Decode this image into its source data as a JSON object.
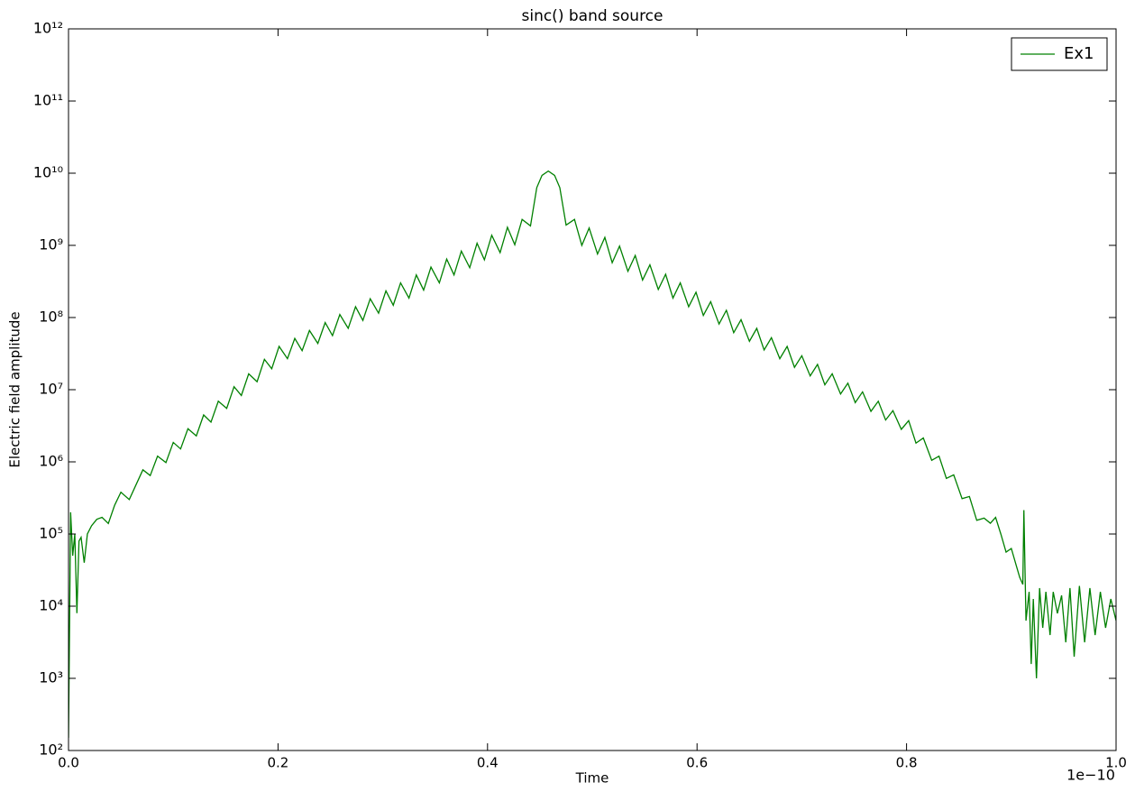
{
  "chart_data": {
    "type": "line",
    "title": "sinc() band source",
    "x_label": "Time",
    "y_label": "Electric field amplitude",
    "x_offset_label": "1e−10",
    "log_y": true,
    "legend": "upper right",
    "xlim": [
      0,
      1
    ],
    "xticks": [
      {
        "value": 0,
        "label": "0.0"
      },
      0.2,
      0.4,
      0.6,
      0.8,
      {
        "value": 1,
        "label": "1.0"
      }
    ],
    "ylim": [
      100,
      1000000000000
    ],
    "yticks": [
      {
        "value": 100,
        "label": "10²"
      },
      {
        "value": 1000,
        "label": "10³"
      },
      {
        "value": 10000,
        "label": "10⁴"
      },
      {
        "value": 100000,
        "label": "10⁵"
      },
      {
        "value": 1000000,
        "label": "10⁶"
      },
      {
        "value": 10000000,
        "label": "10⁷"
      },
      {
        "value": 100000000,
        "label": "10⁸"
      },
      {
        "value": 1000000000,
        "label": "10⁹"
      },
      {
        "value": 10000000000,
        "label": "10¹⁰"
      },
      {
        "value": 100000000000,
        "label": "10¹¹"
      },
      {
        "value": 1000000000000,
        "label": "10¹²"
      }
    ],
    "x": [
      0.0,
      0.002,
      0.004,
      0.006,
      0.008,
      0.01,
      0.012,
      0.015,
      0.018,
      0.022,
      0.027,
      0.032,
      0.038,
      0.044,
      0.05,
      0.058,
      0.071,
      0.078,
      0.085,
      0.093,
      0.1,
      0.107,
      0.114,
      0.122,
      0.129,
      0.136,
      0.143,
      0.151,
      0.158,
      0.165,
      0.172,
      0.18,
      0.187,
      0.194,
      0.201,
      0.209,
      0.216,
      0.223,
      0.23,
      0.238,
      0.245,
      0.252,
      0.259,
      0.267,
      0.274,
      0.281,
      0.288,
      0.296,
      0.303,
      0.31,
      0.317,
      0.325,
      0.332,
      0.339,
      0.346,
      0.354,
      0.361,
      0.368,
      0.375,
      0.383,
      0.39,
      0.397,
      0.404,
      0.412,
      0.419,
      0.426,
      0.433,
      0.441,
      0.447,
      0.452,
      0.458,
      0.464,
      0.469,
      0.475,
      0.483,
      0.49,
      0.497,
      0.505,
      0.512,
      0.519,
      0.526,
      0.534,
      0.541,
      0.548,
      0.555,
      0.563,
      0.57,
      0.577,
      0.584,
      0.592,
      0.599,
      0.606,
      0.613,
      0.621,
      0.628,
      0.635,
      0.642,
      0.65,
      0.657,
      0.664,
      0.671,
      0.679,
      0.686,
      0.693,
      0.7,
      0.708,
      0.715,
      0.722,
      0.729,
      0.737,
      0.744,
      0.751,
      0.758,
      0.766,
      0.773,
      0.78,
      0.787,
      0.795,
      0.802,
      0.809,
      0.816,
      0.824,
      0.831,
      0.838,
      0.845,
      0.853,
      0.86,
      0.867,
      0.874,
      0.88,
      0.885,
      0.89,
      0.895,
      0.9,
      0.904,
      0.908,
      0.911,
      0.912,
      0.914,
      0.917,
      0.919,
      0.921,
      0.924,
      0.927,
      0.93,
      0.933,
      0.937,
      0.94,
      0.944,
      0.948,
      0.952,
      0.956,
      0.96,
      0.965,
      0.97,
      0.975,
      0.98,
      0.985,
      0.99,
      0.995,
      1.0
    ],
    "series": [
      {
        "name": "Ex1",
        "color": "#008000",
        "values": [
          150,
          200000.0,
          50000.0,
          100000.0,
          8000.0,
          80000.0,
          90000.0,
          40000.0,
          100000.0,
          130000.0,
          160000.0,
          170000.0,
          140000.0,
          250000.0,
          380000.0,
          300000.0,
          776000.0,
          646000.0,
          1200000.0,
          977000.0,
          1860000.0,
          1510000.0,
          2880000.0,
          2290000.0,
          4470000.0,
          3550000.0,
          6920000.0,
          5500000.0,
          11000000.0,
          8320000.0,
          16600000.0,
          12900000.0,
          26300000.0,
          19500000.0,
          39800000.0,
          26900000.0,
          51300000.0,
          34700000.0,
          66100000.0,
          43700000.0,
          85100000.0,
          56200000.0,
          110000000.0,
          70800000.0,
          141000000.0,
          91200000.0,
          182000000.0,
          115000000.0,
          234000000.0,
          148000000.0,
          302000000.0,
          186000000.0,
          389000000.0,
          240000000.0,
          501000000.0,
          302000000.0,
          646000000.0,
          389000000.0,
          832000000.0,
          490000000.0,
          1070000000.0,
          631000000.0,
          1380000000.0,
          794000000.0,
          1780000000.0,
          1020000000.0,
          2290000000.0,
          1860000000.0,
          6310000000.0,
          9330000000.0,
          10700000000.0,
          9330000000.0,
          6310000000.0,
          1910000000.0,
          2290000000.0,
          1000000000.0,
          1740000000.0,
          759000000.0,
          1290000000.0,
          575000000.0,
          977000000.0,
          437000000.0,
          724000000.0,
          331000000.0,
          537000000.0,
          245000000.0,
          398000000.0,
          186000000.0,
          302000000.0,
          141000000.0,
          224000000.0,
          107000000.0,
          166000000.0,
          81300000.0,
          126000000.0,
          61700000.0,
          93300000.0,
          46800000.0,
          70800000.0,
          35500000.0,
          52500000.0,
          26900000.0,
          39800000.0,
          20400000.0,
          29500000.0,
          15500000.0,
          22400000.0,
          11700000.0,
          16600000.0,
          8710000.0,
          12300000.0,
          6610000.0,
          9330000.0,
          5010000.0,
          6920000.0,
          3800000.0,
          5130000.0,
          2820000.0,
          3720000.0,
          1820000.0,
          2140000.0,
          1050000.0,
          1200000.0,
          589000.0,
          661000.0,
          309000.0,
          331000.0,
          155000.0,
          166000.0,
          141000.0,
          170000.0,
          100000.0,
          56200.0,
          63100.0,
          39800.0,
          25100.0,
          20000.0,
          214000.0,
          6310.0,
          15800.0,
          1580.0,
          12600.0,
          1000.0,
          17800.0,
          5010.0,
          15800.0,
          3980.0,
          15800.0,
          7940.0,
          14100.0,
          3160.0,
          17800.0,
          2000.0,
          19100.0,
          3160.0,
          17800.0,
          3980.0,
          15800.0,
          5010.0,
          12600.0,
          6310.0
        ]
      }
    ]
  }
}
